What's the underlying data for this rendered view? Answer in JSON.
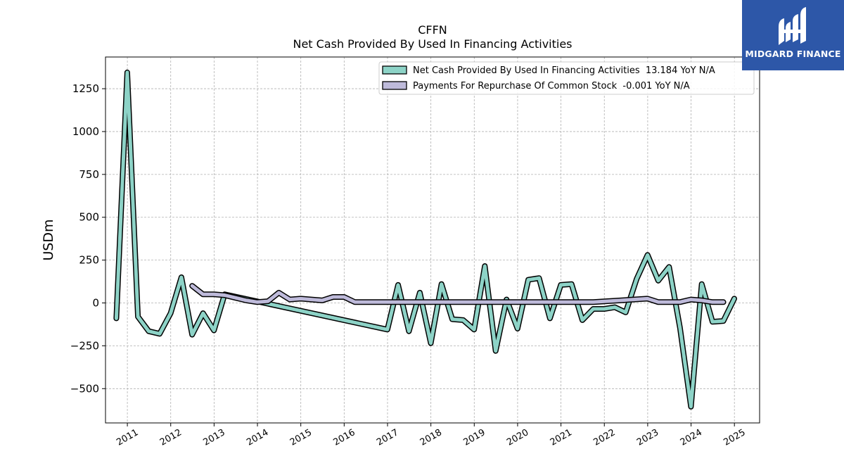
{
  "chart_data": {
    "type": "line",
    "title": "CFFN",
    "subtitle": "Net Cash Provided By Used In Financing Activities",
    "xlabel": "",
    "ylabel": "USDm",
    "xlim": [
      "2010-07-01",
      "2025-08-01"
    ],
    "ylim": [
      -700,
      1435
    ],
    "grid": true,
    "legend_position": "top-right",
    "x_ticks": [
      "2011",
      "2012",
      "2013",
      "2014",
      "2015",
      "2016",
      "2017",
      "2018",
      "2019",
      "2020",
      "2021",
      "2022",
      "2023",
      "2024",
      "2025"
    ],
    "y_ticks": [
      -500,
      -250,
      0,
      250,
      500,
      750,
      1000,
      1250
    ],
    "y_tick_labels": [
      "−500",
      "−250",
      "0",
      "250",
      "500",
      "750",
      "1000",
      "1250"
    ],
    "series": [
      {
        "name": "Net Cash Provided By Used In Financing Activities  13.184 YoY N/A",
        "color": "#8dd3c7",
        "points": [
          [
            "2010-09-30",
            -90
          ],
          [
            "2010-12-31",
            1345
          ],
          [
            "2011-03-31",
            -80
          ],
          [
            "2011-06-30",
            -165
          ],
          [
            "2011-09-30",
            -180
          ],
          [
            "2011-12-31",
            -60
          ],
          [
            "2012-03-31",
            150
          ],
          [
            "2012-06-30",
            -185
          ],
          [
            "2012-09-30",
            -60
          ],
          [
            "2012-12-31",
            -160
          ],
          [
            "2013-03-31",
            50
          ],
          [
            "2016-12-31",
            -155
          ],
          [
            "2017-03-31",
            105
          ],
          [
            "2017-06-30",
            -165
          ],
          [
            "2017-09-30",
            60
          ],
          [
            "2017-12-31",
            -235
          ],
          [
            "2018-03-31",
            110
          ],
          [
            "2018-06-30",
            -95
          ],
          [
            "2018-09-30",
            -100
          ],
          [
            "2018-12-31",
            -155
          ],
          [
            "2019-03-31",
            215
          ],
          [
            "2019-06-30",
            -280
          ],
          [
            "2019-09-30",
            20
          ],
          [
            "2019-12-31",
            -150
          ],
          [
            "2020-03-31",
            135
          ],
          [
            "2020-06-30",
            145
          ],
          [
            "2020-09-30",
            -90
          ],
          [
            "2020-12-31",
            105
          ],
          [
            "2021-03-31",
            110
          ],
          [
            "2021-06-30",
            -100
          ],
          [
            "2021-09-30",
            -35
          ],
          [
            "2021-12-31",
            -35
          ],
          [
            "2022-03-31",
            -25
          ],
          [
            "2022-06-30",
            -55
          ],
          [
            "2022-09-30",
            140
          ],
          [
            "2022-12-31",
            280
          ],
          [
            "2023-03-31",
            130
          ],
          [
            "2023-06-30",
            210
          ],
          [
            "2023-09-30",
            -145
          ],
          [
            "2023-12-31",
            -605
          ],
          [
            "2024-03-31",
            110
          ],
          [
            "2024-06-30",
            -110
          ],
          [
            "2024-09-30",
            -105
          ],
          [
            "2024-12-31",
            25
          ]
        ]
      },
      {
        "name": "Payments For Repurchase Of Common Stock  -0.001 YoY N/A",
        "color": "#bebada",
        "points": [
          [
            "2012-06-30",
            100
          ],
          [
            "2012-09-30",
            50
          ],
          [
            "2012-12-31",
            50
          ],
          [
            "2013-03-31",
            45
          ],
          [
            "2013-06-30",
            30
          ],
          [
            "2013-09-30",
            15
          ],
          [
            "2013-12-31",
            5
          ],
          [
            "2014-03-31",
            10
          ],
          [
            "2014-06-30",
            60
          ],
          [
            "2014-09-30",
            20
          ],
          [
            "2014-12-31",
            25
          ],
          [
            "2015-03-31",
            20
          ],
          [
            "2015-06-30",
            15
          ],
          [
            "2015-09-30",
            35
          ],
          [
            "2015-12-31",
            35
          ],
          [
            "2016-03-31",
            5
          ],
          [
            "2019-12-31",
            5
          ],
          [
            "2021-03-31",
            5
          ],
          [
            "2021-09-30",
            5
          ],
          [
            "2022-12-31",
            25
          ],
          [
            "2023-03-31",
            5
          ],
          [
            "2023-06-30",
            5
          ],
          [
            "2023-09-30",
            5
          ],
          [
            "2023-12-31",
            20
          ],
          [
            "2024-03-31",
            15
          ],
          [
            "2024-06-30",
            5
          ],
          [
            "2024-09-30",
            5
          ]
        ]
      }
    ]
  },
  "logo": {
    "text": "MIDGARD FINANCE",
    "color": "#2d57a8"
  }
}
